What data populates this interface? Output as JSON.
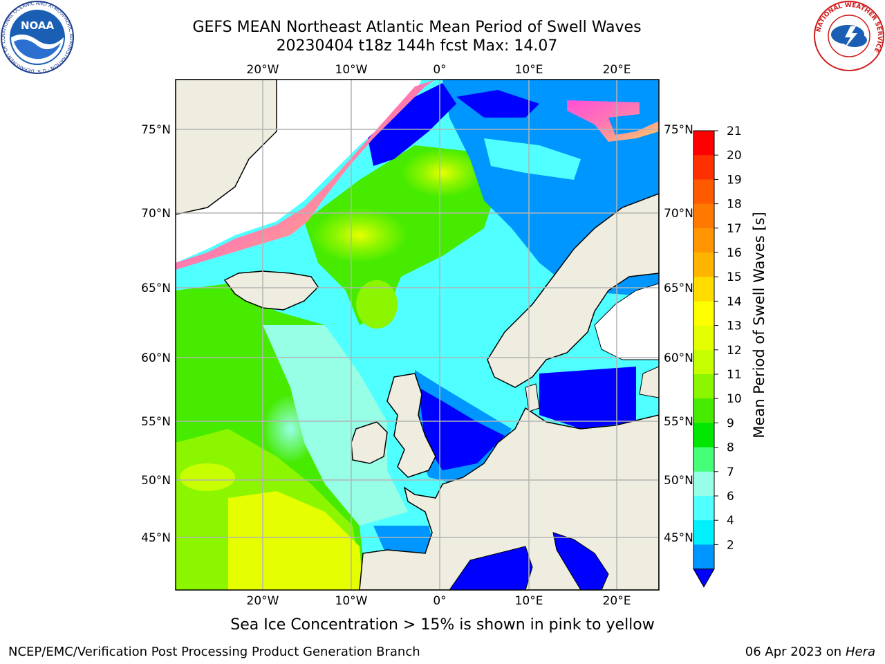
{
  "title": {
    "line1": "GEFS MEAN Northeast Atlantic Mean Period of Swell Waves",
    "line2": "20230404 t18z 144h fcst   Max: 14.07"
  },
  "map": {
    "lon_labels_top": [
      "20°W",
      "10°W",
      "0°",
      "10°E",
      "20°E"
    ],
    "lon_labels_bottom": [
      "20°W",
      "10°W",
      "0°",
      "10°E",
      "20°E"
    ],
    "lat_labels_left": [
      "75°N",
      "70°N",
      "65°N",
      "60°N",
      "55°N",
      "50°N",
      "45°N"
    ],
    "lat_labels_right": [
      "75°N",
      "70°N",
      "65°N",
      "60°N",
      "55°N",
      "50°N",
      "45°N"
    ],
    "colors": {
      "land": "#eeeddf",
      "grid": "#b4b4b4",
      "coast": "#000000"
    }
  },
  "colorbar": {
    "title": "Mean Period of Swell Waves [s]",
    "tick_labels": [
      "21",
      "20",
      "19",
      "18",
      "17",
      "16",
      "15",
      "14",
      "13",
      "12",
      "11",
      "10",
      "9",
      "8",
      "7",
      "6",
      "4",
      "2"
    ],
    "colors": [
      "#ff0000",
      "#ff3000",
      "#ff5a00",
      "#ff7800",
      "#ff9600",
      "#ffb400",
      "#ffdc00",
      "#ffff00",
      "#e6ff00",
      "#c8ff00",
      "#8cf500",
      "#46eb00",
      "#00e600",
      "#46ff78",
      "#96ffe6",
      "#50ffff",
      "#00f0ff",
      "#0096ff",
      "#0000ff"
    ],
    "extend": "min"
  },
  "logos": {
    "noaa": {
      "text": "NOAA",
      "ring_text": "NATIONAL OCEANIC AND ATMOSPHERIC ADMINISTRATION · U.S. DEPARTMENT OF COMMERCE"
    },
    "nws": {
      "ring_text": "NATIONAL WEATHER SERVICE"
    }
  },
  "footnote": "Sea Ice Concentration > 15% is shown in pink to yellow",
  "footer": {
    "left": "NCEP/EMC/Verification Post Processing Product Generation Branch",
    "right_prefix": "06 Apr 2023 on ",
    "right_host": "Hera"
  }
}
